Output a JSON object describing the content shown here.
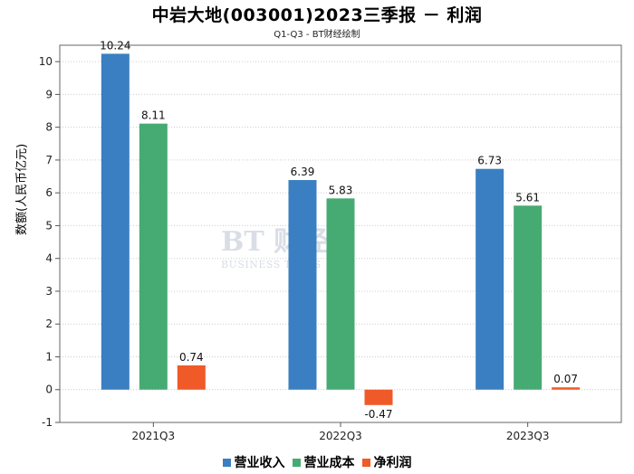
{
  "title": "中岩大地(003001)2023三季报 － 利润",
  "subtitle": "Q1-Q3 - BT财经绘制",
  "watermark": {
    "brand": "BT 财经",
    "tagline": "BUSINESS TIMES"
  },
  "chart_data": {
    "type": "bar",
    "categories": [
      "2021Q3",
      "2022Q3",
      "2023Q3"
    ],
    "series": [
      {
        "name": "营业收入",
        "color": "#3a7fc1",
        "values": [
          10.24,
          6.39,
          6.73
        ]
      },
      {
        "name": "营业成本",
        "color": "#46ab73",
        "values": [
          8.11,
          5.83,
          5.61
        ]
      },
      {
        "name": "净利润",
        "color": "#f05a28",
        "values": [
          0.74,
          -0.47,
          0.07
        ]
      }
    ],
    "ylabel": "数额(人民币亿元)",
    "xlabel": "",
    "ylim": [
      -1,
      10.5
    ],
    "yticks": [
      -1,
      0,
      1,
      2,
      3,
      4,
      5,
      6,
      7,
      8,
      9,
      10
    ],
    "grid": true,
    "legend": "bottom"
  }
}
